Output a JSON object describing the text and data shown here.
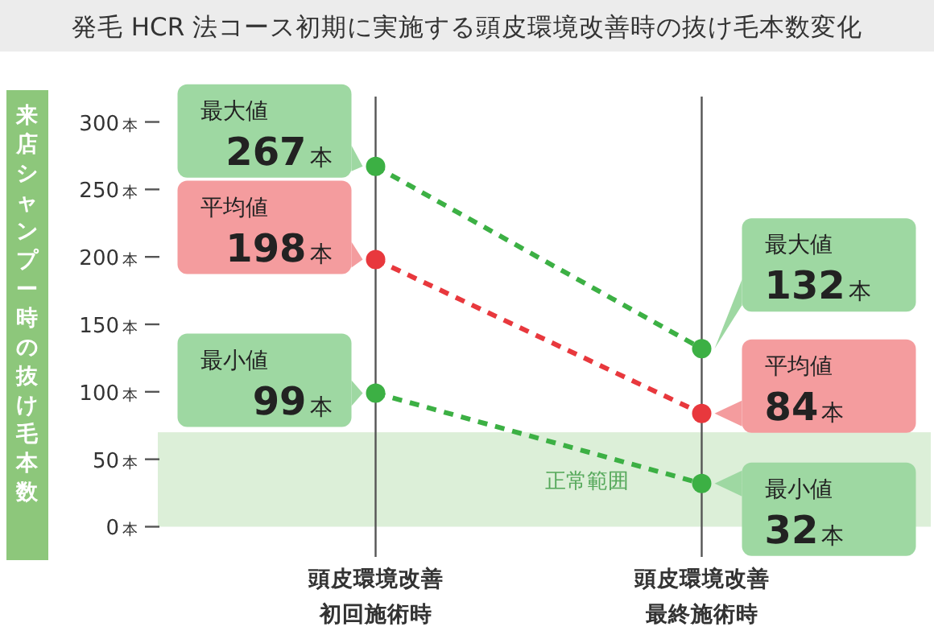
{
  "chart_data": {
    "type": "line",
    "title": "発毛 HCR 法コース初期に実施する頭皮環境改善時の抜け毛本数変化",
    "ylabel": "来店シャンプー時の抜け毛本数",
    "categories": [
      "頭皮環境改善初回施術時",
      "頭皮環境改善最終施術時"
    ],
    "ylim": [
      -20,
      320
    ],
    "yticks": [
      {
        "value": 0,
        "label": "0本"
      },
      {
        "value": 50,
        "label": "50本"
      },
      {
        "value": 100,
        "label": "100本"
      },
      {
        "value": 150,
        "label": "150本"
      },
      {
        "value": 200,
        "label": "200本"
      },
      {
        "value": 250,
        "label": "250本"
      },
      {
        "value": 300,
        "label": "300本"
      }
    ],
    "grid": "x",
    "marker": "circle",
    "line_style": "dashed",
    "bands": [
      {
        "axis": "y",
        "from": 0,
        "to": 70,
        "label": "正常範囲",
        "color": "#dcefd8"
      }
    ],
    "series": [
      {
        "name": "最大値",
        "color": "#3cb044",
        "values": [
          267,
          132
        ],
        "value_labels": [
          "267本",
          "132本"
        ]
      },
      {
        "name": "平均値",
        "color": "#e8383d",
        "values": [
          198,
          84
        ],
        "value_labels": [
          "198本",
          "84本"
        ]
      },
      {
        "name": "最小値",
        "color": "#3cb044",
        "values": [
          99,
          32
        ],
        "value_labels": [
          "99本",
          "32本"
        ]
      }
    ]
  }
}
